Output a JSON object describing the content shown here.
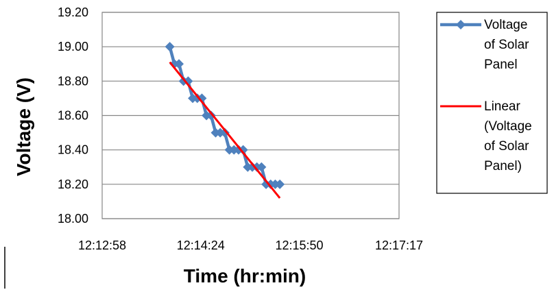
{
  "chart_data": {
    "type": "line",
    "title": "",
    "xlabel": "Time (hr:min)",
    "ylabel": "Voltage (V)",
    "xlim": [
      "12:12:58",
      "12:17:17"
    ],
    "ylim": [
      18.0,
      19.2
    ],
    "x_ticks": [
      "12:12:58",
      "12:14:24",
      "12:15:50",
      "12:17:17"
    ],
    "y_ticks": [
      "18.00",
      "18.20",
      "18.40",
      "18.60",
      "18.80",
      "19.00",
      "19.20"
    ],
    "grid": "horizontal",
    "legend_position": "right",
    "series": [
      {
        "name": "Voltage of Solar Panel",
        "color": "#4F81BD",
        "marker": "diamond",
        "x": [
          "12:13:57",
          "12:14:01",
          "12:14:05",
          "12:14:09",
          "12:14:13",
          "12:14:17",
          "12:14:21",
          "12:14:25",
          "12:14:29",
          "12:14:33",
          "12:14:37",
          "12:14:41",
          "12:14:45",
          "12:14:49",
          "12:14:53",
          "12:14:57",
          "12:15:01",
          "12:15:05",
          "12:15:09",
          "12:15:13",
          "12:15:17",
          "12:15:21",
          "12:15:25",
          "12:15:29",
          "12:15:33"
        ],
        "y": [
          19.0,
          18.9,
          18.9,
          18.8,
          18.8,
          18.7,
          18.7,
          18.7,
          18.6,
          18.6,
          18.5,
          18.5,
          18.5,
          18.4,
          18.4,
          18.4,
          18.4,
          18.3,
          18.3,
          18.3,
          18.3,
          18.2,
          18.2,
          18.2,
          18.2
        ]
      },
      {
        "name": "Linear (Voltage of Solar Panel)",
        "color": "#FF0000",
        "kind": "trendline",
        "x": [
          "12:13:57",
          "12:15:33"
        ],
        "y": [
          18.91,
          18.12
        ]
      }
    ],
    "legend": [
      {
        "lines": [
          "Voltage",
          "of Solar",
          "Panel"
        ],
        "color": "#4F81BD",
        "marker": "diamond"
      },
      {
        "lines": [
          "Linear",
          "(Voltage",
          "of Solar",
          "Panel)"
        ],
        "color": "#FF0000",
        "marker": "none"
      }
    ]
  }
}
